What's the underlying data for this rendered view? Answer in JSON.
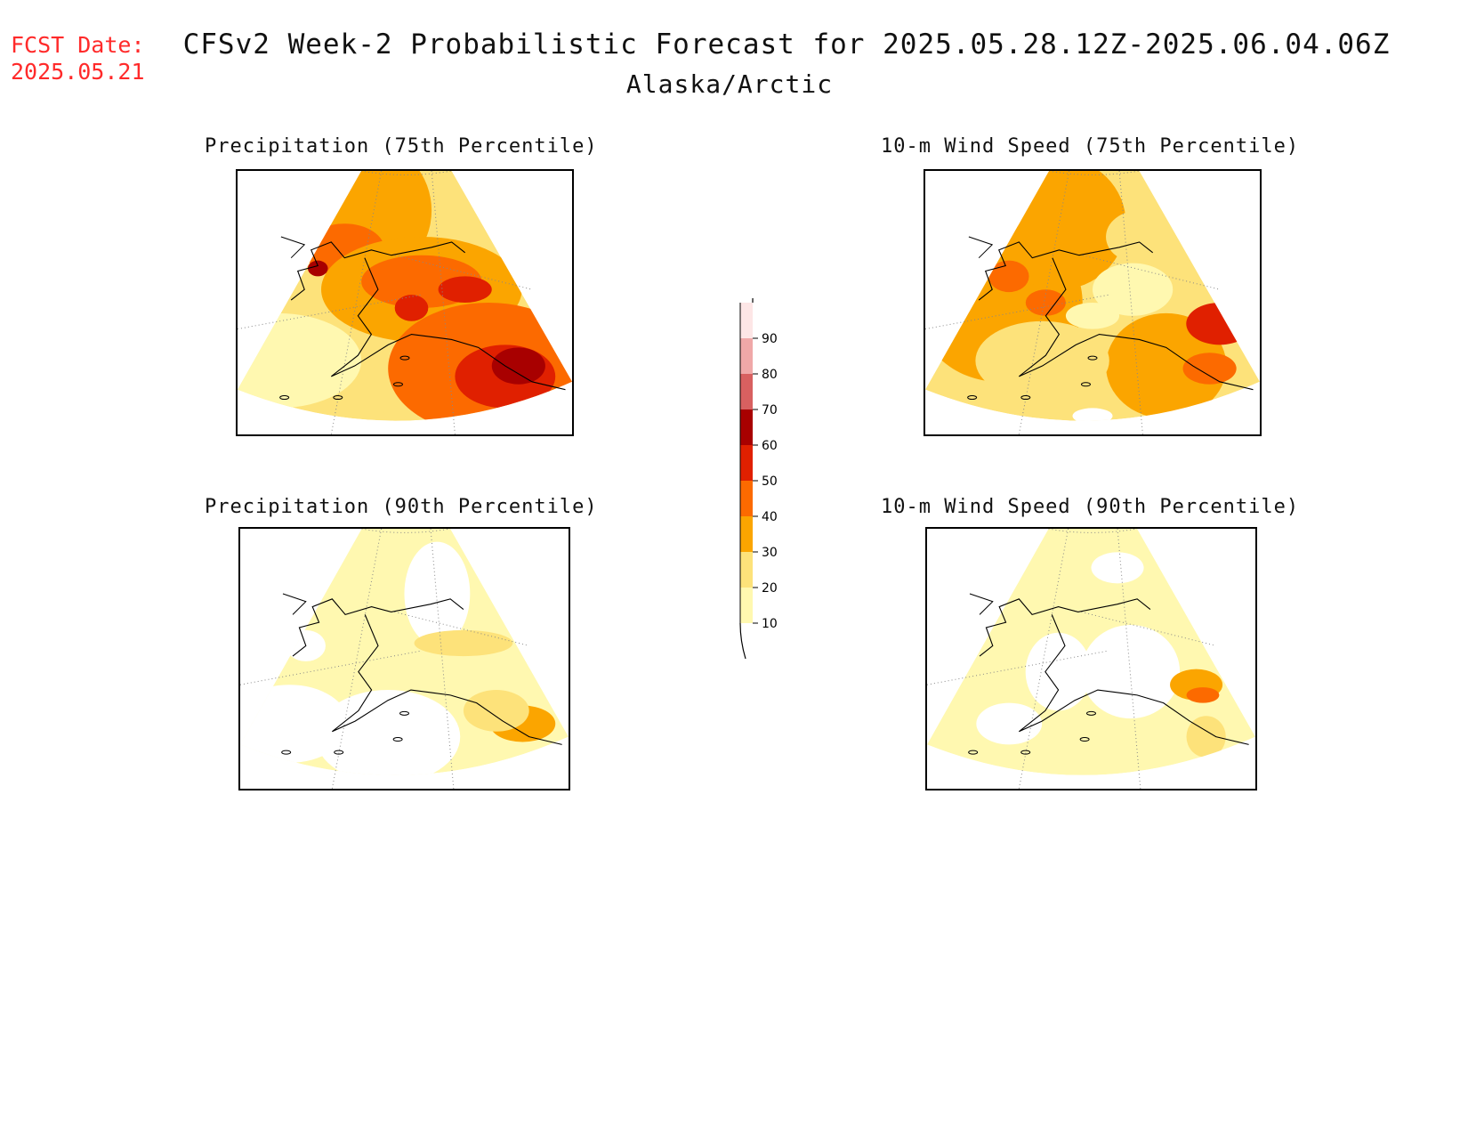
{
  "header": {
    "fcst_label": "FCST Date:",
    "fcst_date": "2025.05.21",
    "title": "CFSv2 Week-2 Probabilistic Forecast for 2025.05.28.12Z-2025.06.04.06Z",
    "subtitle": "Alaska/Arctic"
  },
  "panels": [
    {
      "id": "precip75",
      "title": "Precipitation (75th Percentile)",
      "intensity": "high"
    },
    {
      "id": "wind75",
      "title": "10-m Wind Speed (75th Percentile)",
      "intensity": "high"
    },
    {
      "id": "precip90",
      "title": "Precipitation (90th Percentile)",
      "intensity": "low"
    },
    {
      "id": "wind90",
      "title": "10-m Wind Speed (90th Percentile)",
      "intensity": "low"
    }
  ],
  "colorbar": {
    "levels": [
      {
        "value": "10",
        "color": "#fff8b0"
      },
      {
        "value": "20",
        "color": "#fde27a"
      },
      {
        "value": "30",
        "color": "#fba500"
      },
      {
        "value": "40",
        "color": "#fc6a00"
      },
      {
        "value": "50",
        "color": "#e02000"
      },
      {
        "value": "60",
        "color": "#a80000"
      },
      {
        "value": "70",
        "color": "#d86060"
      },
      {
        "value": "80",
        "color": "#f0a8a8"
      },
      {
        "value": "90",
        "color": "#fde6e6"
      }
    ]
  },
  "chart_data": {
    "type": "heatmap",
    "colorbar_ticks": [
      10,
      20,
      30,
      40,
      50,
      60,
      70,
      80,
      90
    ]
  }
}
